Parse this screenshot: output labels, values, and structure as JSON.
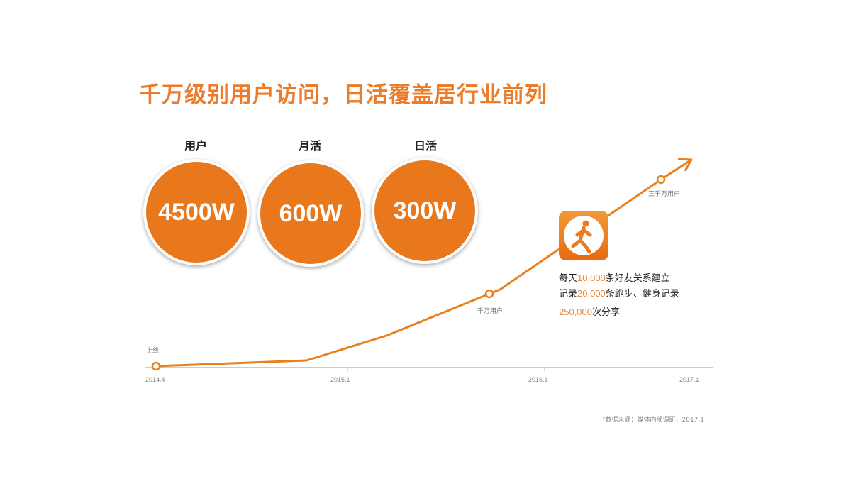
{
  "title": "千万级别用户访问，日活覆盖居行业前列",
  "stats": [
    {
      "label": "用户",
      "value": "4500W"
    },
    {
      "label": "月活",
      "value": "600W"
    },
    {
      "label": "日活",
      "value": "300W"
    }
  ],
  "chart_data": {
    "type": "line",
    "title": "",
    "x_ticks": [
      "2014.4",
      "2015.1",
      "2016.1",
      "2017.1"
    ],
    "milestones": [
      {
        "x": "2014.4",
        "label": "上线"
      },
      {
        "x": "2015.11",
        "label": "千万用户"
      },
      {
        "x": "2016.11",
        "label": "三千万用户"
      }
    ],
    "color": "#e9801f"
  },
  "highlights": [
    {
      "pre": "每天",
      "num": "10,000",
      "post": "条好友关系建立"
    },
    {
      "pre": "记录",
      "num": "20,000",
      "post": "条跑步、健身记录"
    },
    {
      "pre": "",
      "num": "250,000",
      "post": "次分享"
    }
  ],
  "source": "*数据来源：媒体内部调研，2017.1"
}
